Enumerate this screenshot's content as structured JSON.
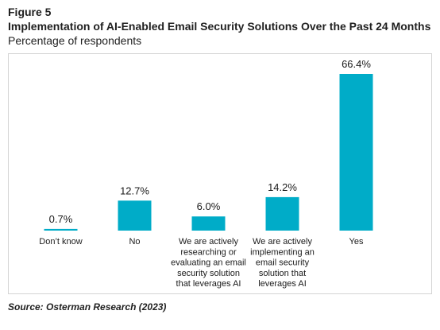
{
  "figure": {
    "label": "Figure 5",
    "title": "Implementation of AI-Enabled Email Security Solutions Over the Past 24 Months",
    "subtitle": "Percentage of respondents",
    "source": "Source: Osterman Research (2023)"
  },
  "chart_data": {
    "type": "bar",
    "categories": [
      "Don’t know",
      "No",
      "We are actively researching or evaluating an email security solution that leverages AI",
      "We are actively implementing an email security solution that leverages AI",
      "Yes"
    ],
    "category_lines": [
      [
        "Don’t know"
      ],
      [
        "No"
      ],
      [
        "We are actively",
        "researching or",
        "evaluating an email",
        "security solution",
        "that leverages AI"
      ],
      [
        "We are actively",
        "implementing an",
        "email security",
        "solution that",
        "leverages AI"
      ],
      [
        "Yes"
      ]
    ],
    "values": [
      0.7,
      12.7,
      6.0,
      14.2,
      66.4
    ],
    "value_labels": [
      "0.7%",
      "12.7%",
      "6.0%",
      "14.2%",
      "66.4%"
    ],
    "unit": "%",
    "ylim": [
      0,
      66.4
    ],
    "bar_color": "#00acc8",
    "grid": false,
    "legend": "none"
  }
}
